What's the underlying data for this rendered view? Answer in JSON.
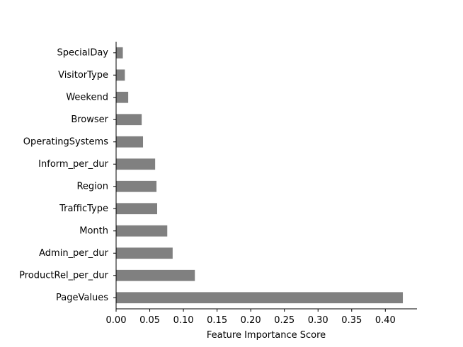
{
  "chart_data": {
    "type": "bar",
    "orientation": "horizontal",
    "title": "",
    "xlabel": "Feature Importance Score",
    "ylabel": "",
    "categories": [
      "PageValues",
      "ProductRel_per_dur",
      "Admin_per_dur",
      "Month",
      "TrafficType",
      "Region",
      "Inform_per_dur",
      "OperatingSystems",
      "Browser",
      "Weekend",
      "VisitorType",
      "SpecialDay"
    ],
    "values": [
      0.426,
      0.117,
      0.084,
      0.076,
      0.061,
      0.06,
      0.058,
      0.04,
      0.038,
      0.018,
      0.013,
      0.01
    ],
    "xlim": [
      0,
      0.447
    ],
    "xticks": [
      0.0,
      0.05,
      0.1,
      0.15,
      0.2,
      0.25,
      0.3,
      0.35,
      0.4
    ],
    "xtick_labels": [
      "0.00",
      "0.05",
      "0.10",
      "0.15",
      "0.20",
      "0.25",
      "0.30",
      "0.35",
      "0.40"
    ],
    "bar_color": "#808080",
    "grid": false,
    "legend": "none"
  }
}
